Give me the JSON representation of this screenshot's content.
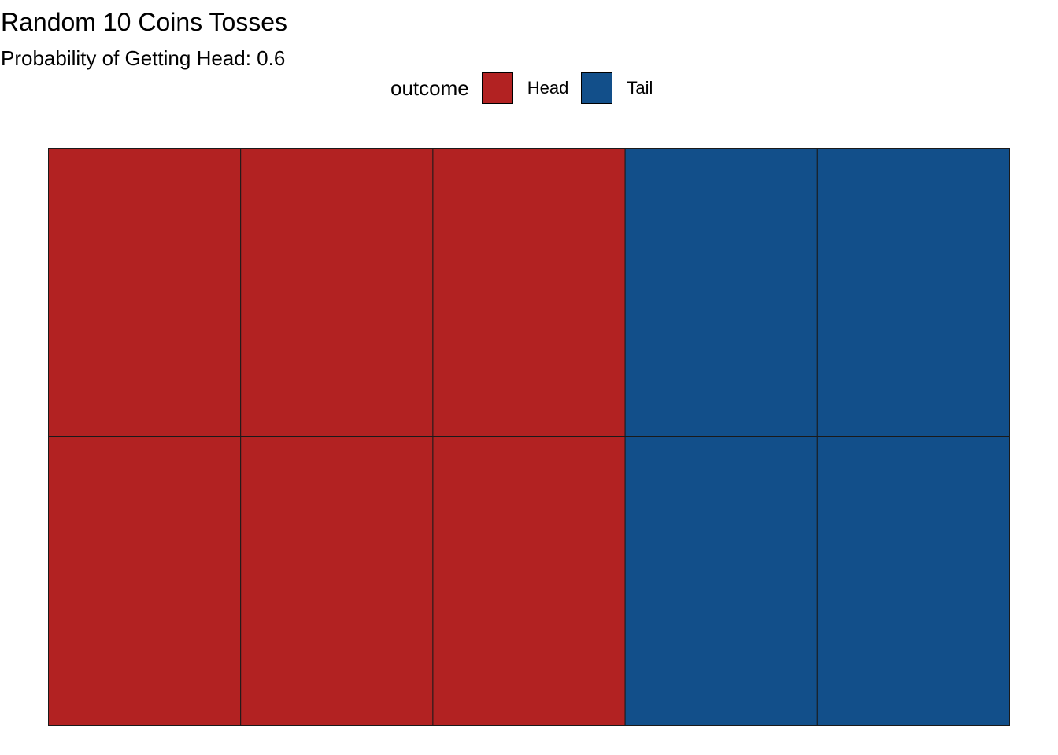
{
  "chart_data": {
    "type": "heatmap",
    "title": "Random 10 Coins Tosses",
    "subtitle": "Probability of Getting Head: 0.6",
    "legend": {
      "title": "outcome",
      "position": "top",
      "entries": [
        {
          "label": "Head",
          "color": "#b22222"
        },
        {
          "label": "Tail",
          "color": "#124f8a"
        }
      ]
    },
    "grid": {
      "rows": 2,
      "cols": 5
    },
    "tiles": [
      {
        "row": 1,
        "col": 1,
        "outcome": "Head"
      },
      {
        "row": 1,
        "col": 2,
        "outcome": "Head"
      },
      {
        "row": 1,
        "col": 3,
        "outcome": "Head"
      },
      {
        "row": 1,
        "col": 4,
        "outcome": "Tail"
      },
      {
        "row": 1,
        "col": 5,
        "outcome": "Tail"
      },
      {
        "row": 2,
        "col": 1,
        "outcome": "Head"
      },
      {
        "row": 2,
        "col": 2,
        "outcome": "Head"
      },
      {
        "row": 2,
        "col": 3,
        "outcome": "Head"
      },
      {
        "row": 2,
        "col": 4,
        "outcome": "Tail"
      },
      {
        "row": 2,
        "col": 5,
        "outcome": "Tail"
      }
    ],
    "counts": {
      "Head": 6,
      "Tail": 4
    }
  }
}
